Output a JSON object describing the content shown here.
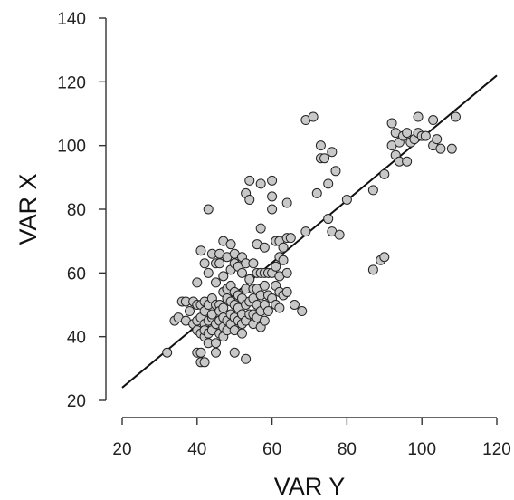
{
  "chart_data": {
    "type": "scatter",
    "xlabel": "VAR Y",
    "ylabel": "VAR X",
    "xlim": [
      20,
      120
    ],
    "ylim": [
      20,
      140
    ],
    "x_ticks": [
      20,
      40,
      60,
      80,
      100,
      120
    ],
    "y_ticks": [
      20,
      40,
      60,
      80,
      100,
      120,
      140
    ],
    "grid": false,
    "legend": "none",
    "marker_color": "#c8c8c8",
    "marker_edge_color": "#222222",
    "line_color": "#111111",
    "fit_line": {
      "x": [
        20,
        120
      ],
      "y": [
        24,
        122
      ]
    },
    "points": [
      [
        32,
        35
      ],
      [
        34,
        45
      ],
      [
        35,
        46
      ],
      [
        36,
        51
      ],
      [
        37,
        51
      ],
      [
        37,
        45
      ],
      [
        38,
        48
      ],
      [
        39,
        44
      ],
      [
        39,
        51
      ],
      [
        40,
        57
      ],
      [
        40,
        50
      ],
      [
        40,
        45
      ],
      [
        40,
        42
      ],
      [
        40,
        35
      ],
      [
        41,
        41
      ],
      [
        41,
        46
      ],
      [
        41,
        50
      ],
      [
        41,
        67
      ],
      [
        41,
        32
      ],
      [
        41,
        35
      ],
      [
        42,
        40
      ],
      [
        42,
        44
      ],
      [
        42,
        48
      ],
      [
        42,
        51
      ],
      [
        42,
        63
      ],
      [
        42,
        32
      ],
      [
        42,
        42
      ],
      [
        43,
        80
      ],
      [
        43,
        45
      ],
      [
        43,
        41
      ],
      [
        43,
        50
      ],
      [
        43,
        60
      ],
      [
        43,
        38
      ],
      [
        44,
        66
      ],
      [
        44,
        52
      ],
      [
        44,
        46
      ],
      [
        44,
        42
      ],
      [
        44,
        47
      ],
      [
        45,
        50
      ],
      [
        45,
        63
      ],
      [
        45,
        44
      ],
      [
        45,
        35
      ],
      [
        45,
        38
      ],
      [
        45,
        57
      ],
      [
        46,
        66
      ],
      [
        46,
        45
      ],
      [
        46,
        50
      ],
      [
        46,
        41
      ],
      [
        46,
        48
      ],
      [
        46,
        63
      ],
      [
        47,
        70
      ],
      [
        47,
        59
      ],
      [
        47,
        54
      ],
      [
        47,
        49
      ],
      [
        47,
        46
      ],
      [
        47,
        43
      ],
      [
        47,
        40
      ],
      [
        48,
        65
      ],
      [
        48,
        55
      ],
      [
        48,
        52
      ],
      [
        48,
        45
      ],
      [
        48,
        42
      ],
      [
        49,
        69
      ],
      [
        49,
        61
      ],
      [
        49,
        56
      ],
      [
        49,
        51
      ],
      [
        49,
        47
      ],
      [
        49,
        44
      ],
      [
        50,
        66
      ],
      [
        50,
        63
      ],
      [
        50,
        54
      ],
      [
        50,
        50
      ],
      [
        50,
        35
      ],
      [
        50,
        46
      ],
      [
        50,
        42
      ],
      [
        51,
        62
      ],
      [
        51,
        53
      ],
      [
        51,
        49
      ],
      [
        51,
        45
      ],
      [
        52,
        65
      ],
      [
        52,
        60
      ],
      [
        52,
        52
      ],
      [
        52,
        47
      ],
      [
        52,
        44
      ],
      [
        52,
        41
      ],
      [
        53,
        85
      ],
      [
        53,
        63
      ],
      [
        53,
        55
      ],
      [
        53,
        50
      ],
      [
        53,
        45
      ],
      [
        53,
        33
      ],
      [
        54,
        89
      ],
      [
        54,
        83
      ],
      [
        54,
        58
      ],
      [
        54,
        51
      ],
      [
        54,
        47
      ],
      [
        55,
        63
      ],
      [
        55,
        55
      ],
      [
        55,
        52
      ],
      [
        55,
        47
      ],
      [
        55,
        44
      ],
      [
        56,
        69
      ],
      [
        56,
        60
      ],
      [
        56,
        55
      ],
      [
        56,
        50
      ],
      [
        56,
        46
      ],
      [
        57,
        88
      ],
      [
        57,
        74
      ],
      [
        57,
        60
      ],
      [
        57,
        53
      ],
      [
        57,
        48
      ],
      [
        57,
        43
      ],
      [
        58,
        68
      ],
      [
        58,
        60
      ],
      [
        58,
        56
      ],
      [
        58,
        50
      ],
      [
        58,
        45
      ],
      [
        59,
        60
      ],
      [
        59,
        53
      ],
      [
        59,
        48
      ],
      [
        60,
        89
      ],
      [
        60,
        84
      ],
      [
        60,
        80
      ],
      [
        60,
        60
      ],
      [
        60,
        52
      ],
      [
        61,
        70
      ],
      [
        61,
        62
      ],
      [
        61,
        56
      ],
      [
        61,
        50
      ],
      [
        62,
        65
      ],
      [
        62,
        70
      ],
      [
        62,
        59
      ],
      [
        62,
        54
      ],
      [
        62,
        49
      ],
      [
        63,
        68
      ],
      [
        63,
        64
      ],
      [
        63,
        53
      ],
      [
        64,
        82
      ],
      [
        64,
        71
      ],
      [
        64,
        60
      ],
      [
        64,
        54
      ],
      [
        65,
        71
      ],
      [
        66,
        50
      ],
      [
        68,
        48
      ],
      [
        69,
        73
      ],
      [
        69,
        108
      ],
      [
        71,
        109
      ],
      [
        72,
        85
      ],
      [
        73,
        100
      ],
      [
        73,
        96
      ],
      [
        74,
        96
      ],
      [
        75,
        77
      ],
      [
        75,
        88
      ],
      [
        76,
        98
      ],
      [
        76,
        73
      ],
      [
        77,
        92
      ],
      [
        78,
        72
      ],
      [
        80,
        83
      ],
      [
        87,
        86
      ],
      [
        87,
        61
      ],
      [
        89,
        64
      ],
      [
        90,
        65
      ],
      [
        90,
        91
      ],
      [
        92,
        100
      ],
      [
        92,
        107
      ],
      [
        93,
        97
      ],
      [
        93,
        104
      ],
      [
        94,
        101
      ],
      [
        94,
        95
      ],
      [
        95,
        103
      ],
      [
        96,
        95
      ],
      [
        96,
        104
      ],
      [
        97,
        101
      ],
      [
        98,
        102
      ],
      [
        99,
        104
      ],
      [
        99,
        109
      ],
      [
        100,
        103
      ],
      [
        101,
        103
      ],
      [
        103,
        108
      ],
      [
        103,
        100
      ],
      [
        104,
        102
      ],
      [
        105,
        99
      ],
      [
        108,
        99
      ],
      [
        109,
        109
      ]
    ]
  }
}
